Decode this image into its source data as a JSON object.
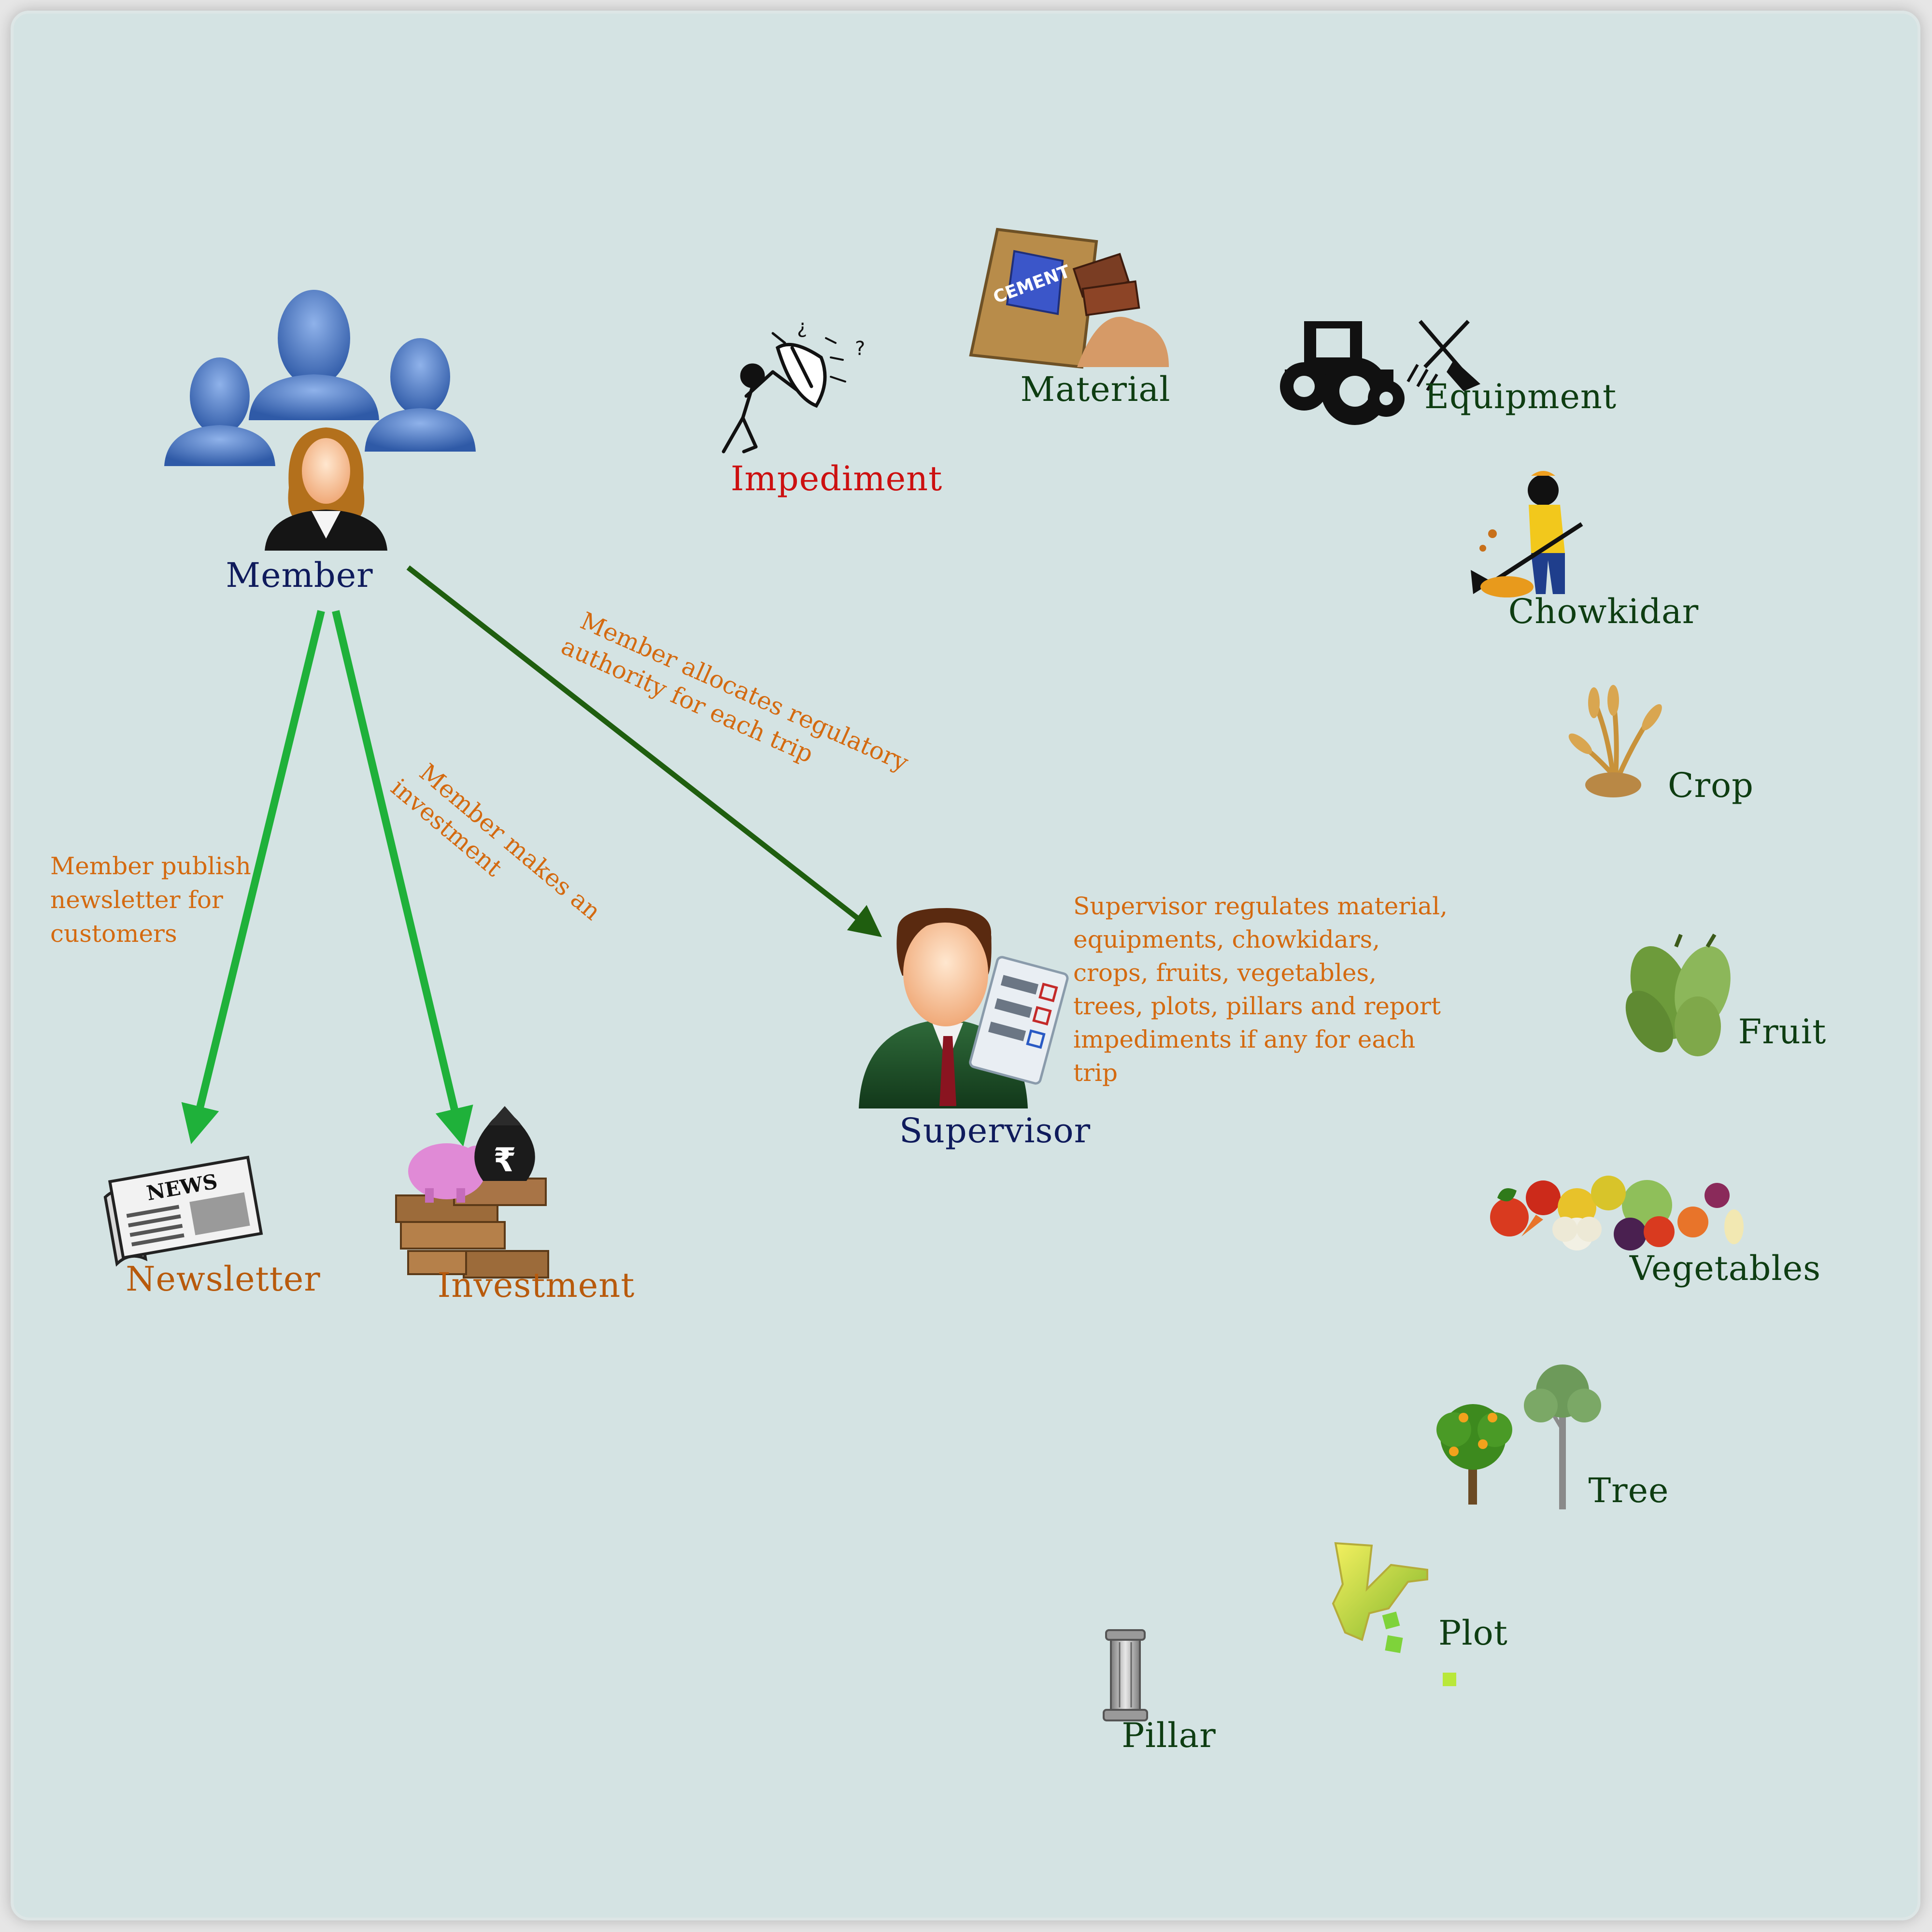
{
  "colors": {
    "background": "#d4e3e3",
    "node_label_dark": "#0f1b5c",
    "node_label_green": "#0e3d12",
    "node_label_brown": "#b85a0c",
    "impediment_red": "#cc1010",
    "annotation_orange": "#d46a10",
    "line_bright_green": "#1fb13a",
    "line_dark_green": "#1f5e0f"
  },
  "nodes": {
    "member": "Member",
    "supervisor": "Supervisor",
    "newsletter": "Newsletter",
    "investment": "Investment",
    "impediment": "Impediment",
    "material": "Material",
    "equipment": "Equipment",
    "chowkidar": "Chowkidar",
    "crop": "Crop",
    "fruit": "Fruit",
    "vegetables": "Vegetables",
    "tree": "Tree",
    "plot": "Plot",
    "pillar": "Pillar"
  },
  "edges": {
    "newsletter": [
      "Member publish",
      "newsletter for",
      "customers"
    ],
    "investment": [
      "Member makes an",
      "investment"
    ],
    "supervisor": [
      "Member allocates regulatory",
      "authority for each trip"
    ]
  },
  "supervisor_note": [
    "Supervisor regulates material,",
    "equipments, chowkidars,",
    "crops, fruits, vegetables,",
    "trees, plots, pillars and report",
    "impediments if any for each",
    "trip"
  ],
  "icons": {
    "member": "group-of-people-icon",
    "supervisor": "businessman-checklist-icon",
    "newsletter": "newspaper-icon",
    "newsletter_masthead": "NEWS",
    "investment": "piggy-bank-money-icon",
    "investment_symbol": "₹",
    "impediment": "figure-with-umbrella-icon",
    "material": "cement-bag-icon",
    "material_bag_text": "CEMENT",
    "equipment": "tractor-tools-icon",
    "chowkidar": "worker-raking-icon",
    "crop": "wheat-icon",
    "fruit": "mango-icon",
    "vegetables": "vegetables-icon",
    "tree": "trees-icon",
    "plot": "land-plot-icon",
    "pillar": "pillar-icon"
  }
}
